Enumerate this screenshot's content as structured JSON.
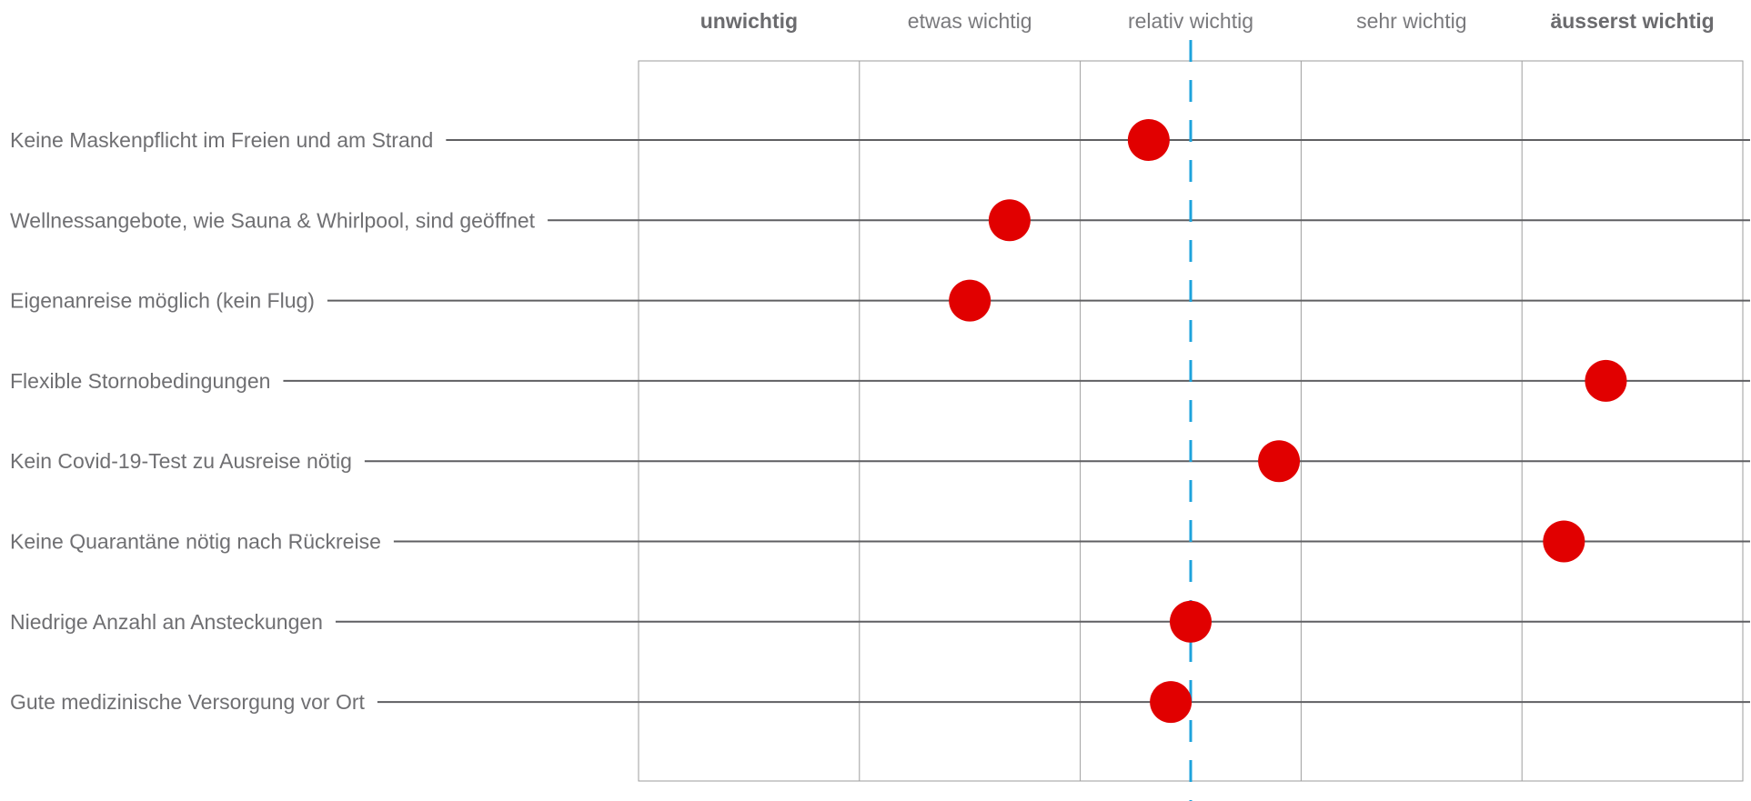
{
  "chart_data": {
    "type": "scatter",
    "title": "",
    "xlabel": "",
    "ylabel": "",
    "scale_levels": [
      "unwichtig",
      "etwas wichtig",
      "relativ wichtig",
      "sehr wichtig",
      "äusserst wichtig"
    ],
    "scale_levels_bold": [
      true,
      false,
      false,
      false,
      true
    ],
    "xlim": [
      0,
      5
    ],
    "reference_value": 2.5,
    "categories": [
      "Keine Maskenpflicht im Freien und am Strand",
      "Wellnessangebote, wie Sauna & Whirlpool, sind geöffnet",
      "Eigenanreise möglich (kein Flug)",
      "Flexible Stornobedingungen",
      "Kein Covid-19-Test zu Ausreise nötig",
      "Keine Quarantäne nötig nach Rückreise",
      "Niedrige Anzahl an Ansteckungen",
      "Gute medizinische Versorgung vor Ort"
    ],
    "values": [
      2.31,
      1.68,
      1.5,
      4.38,
      2.9,
      4.19,
      2.5,
      2.41
    ],
    "grid": true,
    "colors": {
      "point": "#e10000",
      "reference_line": "#1ea3dc",
      "grid": "#9e9e9e",
      "row_line": "#5f5f62",
      "label_text": "#6f6f72"
    }
  }
}
